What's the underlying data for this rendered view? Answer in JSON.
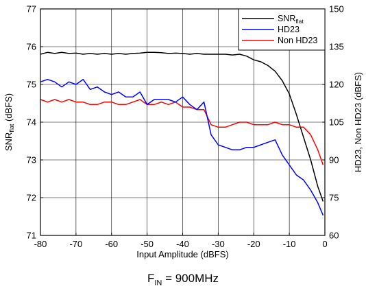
{
  "caption": {
    "main": "F",
    "sub": "IN",
    "rest": " = 900MHz"
  },
  "chart_data": {
    "type": "line",
    "title": "",
    "xlabel": "Input Amplitude (dBFS)",
    "ylabel_left": {
      "main": "SNR",
      "sub": "flat",
      "rest": " (dBFS)"
    },
    "ylabel_right": "HD23, Non HD23 (dBFS)",
    "xlim": [
      -80,
      0
    ],
    "ylim_left": [
      71,
      77
    ],
    "ylim_right": [
      60,
      150
    ],
    "xticks": [
      -80,
      -70,
      -60,
      -50,
      -40,
      -30,
      -20,
      -10,
      0
    ],
    "yticks_left": [
      71,
      72,
      73,
      74,
      75,
      76,
      77
    ],
    "yticks_right": [
      60,
      75,
      90,
      105,
      120,
      135,
      150
    ],
    "grid": true,
    "legend_position": "top-right",
    "x": [
      -80,
      -78,
      -76,
      -74,
      -72,
      -70,
      -68,
      -66,
      -64,
      -62,
      -60,
      -58,
      -56,
      -54,
      -52,
      -50,
      -48,
      -46,
      -44,
      -42,
      -40,
      -38,
      -36,
      -34,
      -32,
      -30,
      -28,
      -26,
      -24,
      -22,
      -20,
      -18,
      -16,
      -14,
      -12,
      -10,
      -8,
      -6,
      -4,
      -2,
      -0.5
    ],
    "series": [
      {
        "name": {
          "main": "SNR",
          "sub": "flat"
        },
        "axis": "left",
        "color": "#000000",
        "values": [
          75.8,
          75.85,
          75.82,
          75.85,
          75.82,
          75.83,
          75.8,
          75.82,
          75.8,
          75.82,
          75.8,
          75.82,
          75.8,
          75.82,
          75.83,
          75.85,
          75.85,
          75.84,
          75.82,
          75.83,
          75.82,
          75.8,
          75.82,
          75.8,
          75.8,
          75.8,
          75.8,
          75.78,
          75.8,
          75.75,
          75.65,
          75.6,
          75.5,
          75.35,
          75.1,
          74.75,
          74.2,
          73.6,
          73.0,
          72.3,
          71.9
        ]
      },
      {
        "name": "HD23",
        "axis": "right",
        "color": "#0000ff",
        "values": [
          121,
          122,
          121,
          119,
          121,
          120,
          122,
          118,
          119,
          117,
          116,
          117,
          115,
          115,
          117,
          112,
          114,
          114,
          114,
          113,
          115,
          112,
          110,
          113,
          100,
          96,
          95,
          94,
          94,
          95,
          95,
          96,
          97,
          98,
          92,
          88,
          84,
          82,
          78,
          73,
          68
        ]
      },
      {
        "name": "Non HD23",
        "axis": "right",
        "color": "#ff0000",
        "values": [
          114,
          113,
          114,
          113,
          114,
          113,
          113,
          112,
          112,
          113,
          113,
          112,
          112,
          113,
          114,
          112,
          112,
          113,
          112,
          113,
          111,
          111,
          110,
          110,
          104,
          103,
          103,
          104,
          105,
          105,
          104,
          104,
          104,
          105,
          104,
          104,
          103,
          103,
          100,
          94,
          88
        ]
      }
    ]
  }
}
